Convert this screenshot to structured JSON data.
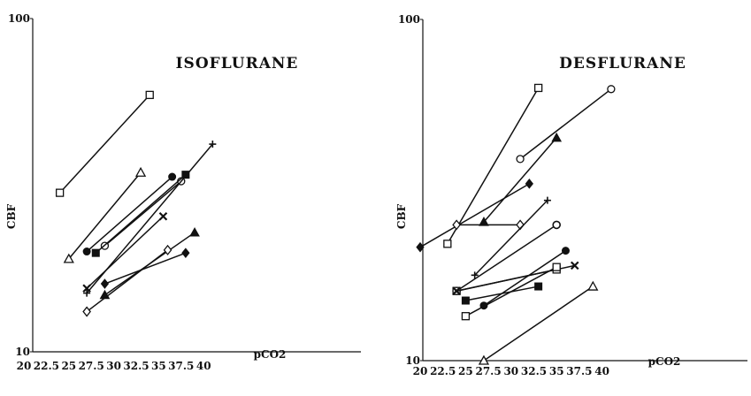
{
  "chart_data": [
    {
      "type": "line",
      "title": "ISOFLURANE",
      "xlabel": "pCO2",
      "ylabel": "CBF",
      "xlim": [
        20,
        42
      ],
      "ylim": [
        10,
        100
      ],
      "yscale": "log",
      "x_ticks": [
        "20",
        "22.5",
        "25",
        "27.5",
        "30",
        "32.5",
        "35",
        "37.5",
        "40"
      ],
      "y_ticks": [
        "10",
        "100"
      ],
      "grid": false,
      "series": [
        {
          "marker": "square-open",
          "points": [
            [
              24,
              30.0
            ],
            [
              34,
              59.0
            ]
          ]
        },
        {
          "marker": "triangle-open",
          "points": [
            [
              25,
              19.0
            ],
            [
              33,
              34.5
            ]
          ]
        },
        {
          "marker": "circle-filled",
          "points": [
            [
              27,
              20.0
            ],
            [
              36.5,
              33.5
            ]
          ]
        },
        {
          "marker": "circle-open",
          "points": [
            [
              29,
              20.8
            ],
            [
              37.5,
              32.5
            ]
          ]
        },
        {
          "marker": "square-filled",
          "points": [
            [
              28,
              19.8
            ],
            [
              38,
              34.0
            ]
          ]
        },
        {
          "marker": "asterisk",
          "points": [
            [
              27,
              15.5
            ],
            [
              35.5,
              25.5
            ]
          ]
        },
        {
          "marker": "plus",
          "points": [
            [
              27,
              15.0
            ],
            [
              41,
              42.0
            ]
          ]
        },
        {
          "marker": "diamond-filled",
          "points": [
            [
              29,
              16.0
            ],
            [
              38,
              19.8
            ]
          ]
        },
        {
          "marker": "triangle-filled",
          "points": [
            [
              29,
              14.8
            ],
            [
              39,
              22.8
            ]
          ]
        },
        {
          "marker": "diamond-open",
          "points": [
            [
              27,
              13.2
            ],
            [
              36,
              20.2
            ]
          ]
        }
      ]
    },
    {
      "type": "line",
      "title": "DESFLURANE",
      "xlabel": "pCO2",
      "ylabel": "CBF",
      "xlim": [
        20,
        42
      ],
      "ylim": [
        10,
        100
      ],
      "yscale": "log",
      "x_ticks": [
        "20",
        "22.5",
        "25",
        "27.5",
        "30",
        "32.5",
        "35",
        "37.5",
        "40"
      ],
      "y_ticks": [
        "10",
        "100"
      ],
      "grid": false,
      "series": [
        {
          "marker": "diamond-filled",
          "points": [
            [
              20,
              21.5
            ],
            [
              32,
              33.0
            ]
          ]
        },
        {
          "marker": "square-open",
          "points": [
            [
              23,
              22.0
            ],
            [
              33,
              63.0
            ]
          ]
        },
        {
          "marker": "circle-open",
          "points": [
            [
              31,
              39.0
            ],
            [
              41,
              62.5
            ]
          ]
        },
        {
          "marker": "triangle-filled",
          "points": [
            [
              27,
              25.5
            ],
            [
              35,
              45.0
            ]
          ]
        },
        {
          "marker": "diamond-open",
          "points": [
            [
              24,
              25.0
            ],
            [
              31,
              25.0
            ]
          ]
        },
        {
          "marker": "plus",
          "points": [
            [
              26,
              17.8
            ],
            [
              34,
              29.5
            ]
          ]
        },
        {
          "marker": "circle-half",
          "points": [
            [
              24,
              16.0
            ],
            [
              35,
              25.0
            ]
          ]
        },
        {
          "marker": "square-open",
          "points": [
            [
              24,
              16.0
            ],
            [
              35,
              18.5
            ]
          ]
        },
        {
          "marker": "asterisk",
          "points": [
            [
              24,
              16.0
            ],
            [
              37,
              19.0
            ]
          ]
        },
        {
          "marker": "square-filled",
          "points": [
            [
              25,
              15.0
            ],
            [
              33,
              16.5
            ]
          ]
        },
        {
          "marker": "circle-filled",
          "points": [
            [
              27,
              14.5
            ],
            [
              36,
              21.0
            ]
          ]
        },
        {
          "marker": "square-open",
          "points": [
            [
              25,
              13.5
            ],
            [
              35,
              18.8
            ]
          ]
        },
        {
          "marker": "triangle-open",
          "points": [
            [
              27,
              10.0
            ],
            [
              39,
              16.5
            ]
          ]
        }
      ]
    }
  ]
}
